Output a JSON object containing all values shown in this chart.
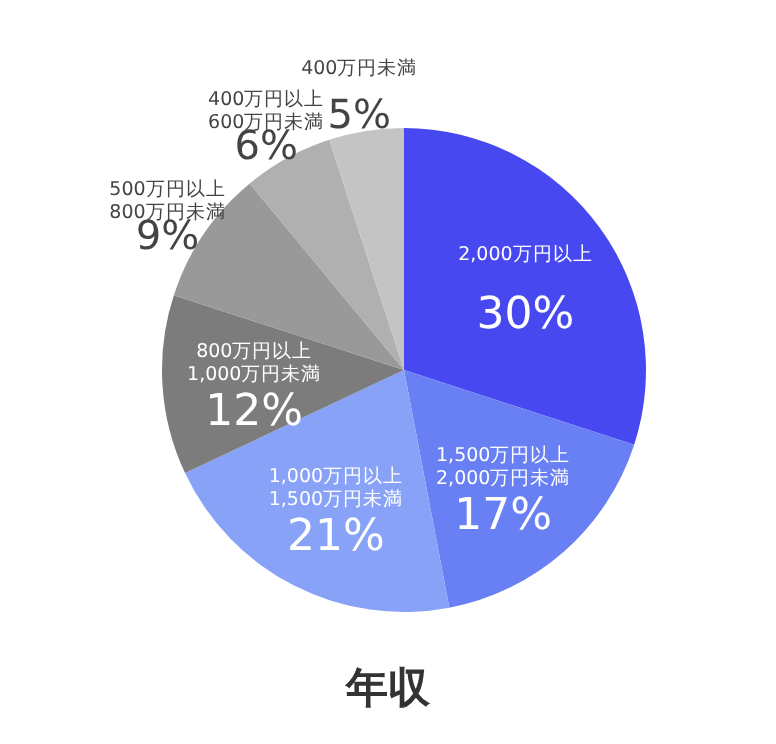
{
  "chart_data": {
    "type": "pie",
    "title": "年収",
    "categories": [
      "2,000万円以上",
      "1,500万円以上 2,000万円未満",
      "1,000万円以上 1,500万円未満",
      "800万円以上 1,000万円未満",
      "500万円以上 800万円未満",
      "400万円以上 600万円未満",
      "400万円未満"
    ],
    "values": [
      30,
      17,
      21,
      12,
      9,
      6,
      5
    ],
    "value_labels": [
      "30%",
      "17%",
      "21%",
      "12%",
      "9%",
      "6%",
      "5%"
    ],
    "colors": [
      "#4848f0",
      "#6880f4",
      "#88a2f8",
      "#7c7c7c",
      "#999999",
      "#b0b0b0",
      "#c4c4c4"
    ]
  }
}
